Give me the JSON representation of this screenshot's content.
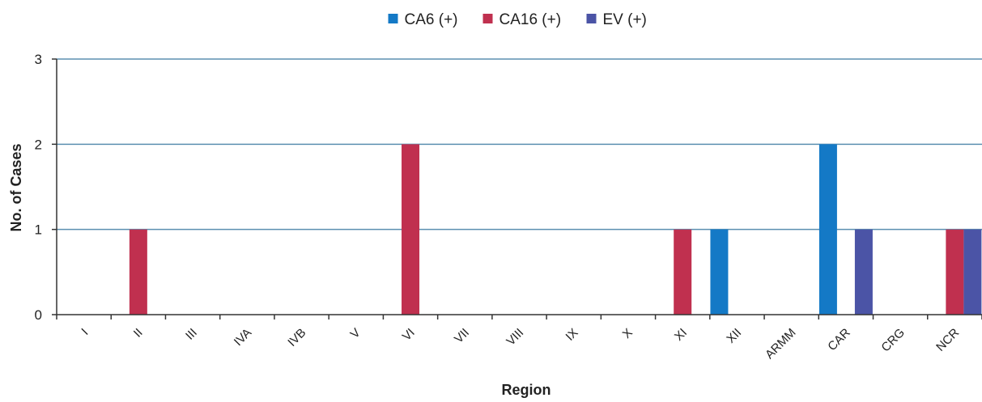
{
  "chart_data": {
    "type": "bar",
    "title": "",
    "xlabel": "Region",
    "ylabel": "No. of Cases",
    "ylim": [
      0,
      3
    ],
    "yticks": [
      "0",
      "1",
      "2",
      "3"
    ],
    "grid": true,
    "legend_position": "top-center",
    "categories": [
      "I",
      "II",
      "III",
      "IVA",
      "IVB",
      "V",
      "VI",
      "VII",
      "VIII",
      "IX",
      "X",
      "XI",
      "XII",
      "ARMM",
      "CAR",
      "CRG",
      "NCR"
    ],
    "series": [
      {
        "name": "CA6 (+)",
        "color": "#1479c6",
        "values": [
          0,
          0,
          0,
          0,
          0,
          0,
          0,
          0,
          0,
          0,
          0,
          0,
          1,
          0,
          2,
          0,
          0
        ]
      },
      {
        "name": "CA16 (+)",
        "color": "#c0304f",
        "values": [
          0,
          1,
          0,
          0,
          0,
          0,
          2,
          0,
          0,
          0,
          0,
          1,
          0,
          0,
          0,
          0,
          1
        ]
      },
      {
        "name": "EV (+)",
        "color": "#4b54a6",
        "values": [
          0,
          0,
          0,
          0,
          0,
          0,
          0,
          0,
          0,
          0,
          0,
          0,
          0,
          0,
          1,
          0,
          1
        ]
      }
    ]
  }
}
